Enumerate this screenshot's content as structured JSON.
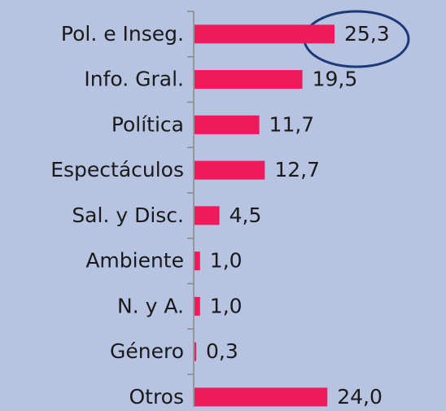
{
  "chart_data": {
    "type": "hbar",
    "categories": [
      "Pol. e Inseg.",
      "Info. Gral.",
      "Política",
      "Espectáculos",
      "Sal. y Disc.",
      "Ambiente",
      "N. y A.",
      "Género",
      "Otros"
    ],
    "values": [
      25.3,
      19.5,
      11.7,
      12.7,
      4.5,
      1.0,
      1.0,
      0.3,
      24.0
    ],
    "value_labels": [
      "25,3",
      "19,5",
      "11,7",
      "12,7",
      "4,5",
      "1,0",
      "1,0",
      "0,3",
      "24,0"
    ],
    "color": "#ee1a5c"
  }
}
